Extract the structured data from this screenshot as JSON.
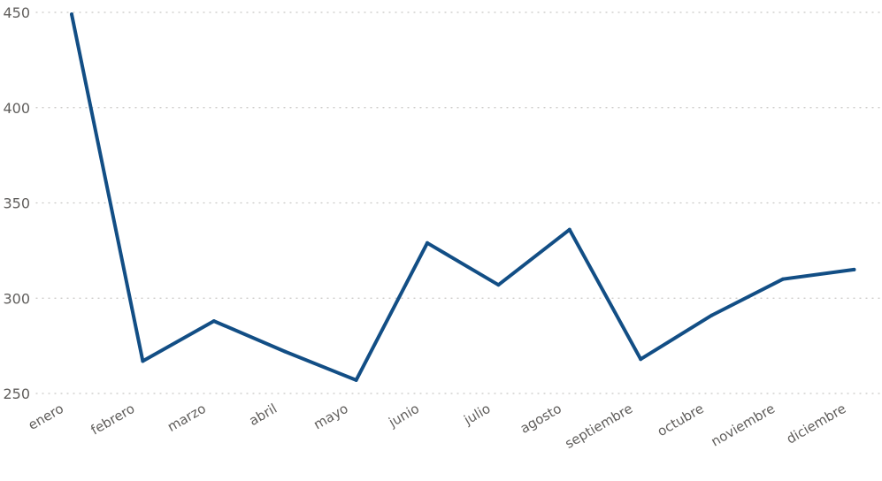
{
  "chart_data": {
    "type": "line",
    "categories": [
      "enero",
      "febrero",
      "marzo",
      "abril",
      "mayo",
      "junio",
      "julio",
      "agosto",
      "septiembre",
      "octubre",
      "noviembre",
      "diciembre"
    ],
    "series": [
      {
        "values": [
          449,
          267,
          288,
          272,
          257,
          329,
          307,
          336,
          268,
          291,
          310,
          315
        ]
      }
    ],
    "yticks": [
      250,
      300,
      350,
      400,
      450
    ],
    "ylim": [
      250,
      450
    ],
    "grid": true,
    "line_color": "#124E85"
  }
}
